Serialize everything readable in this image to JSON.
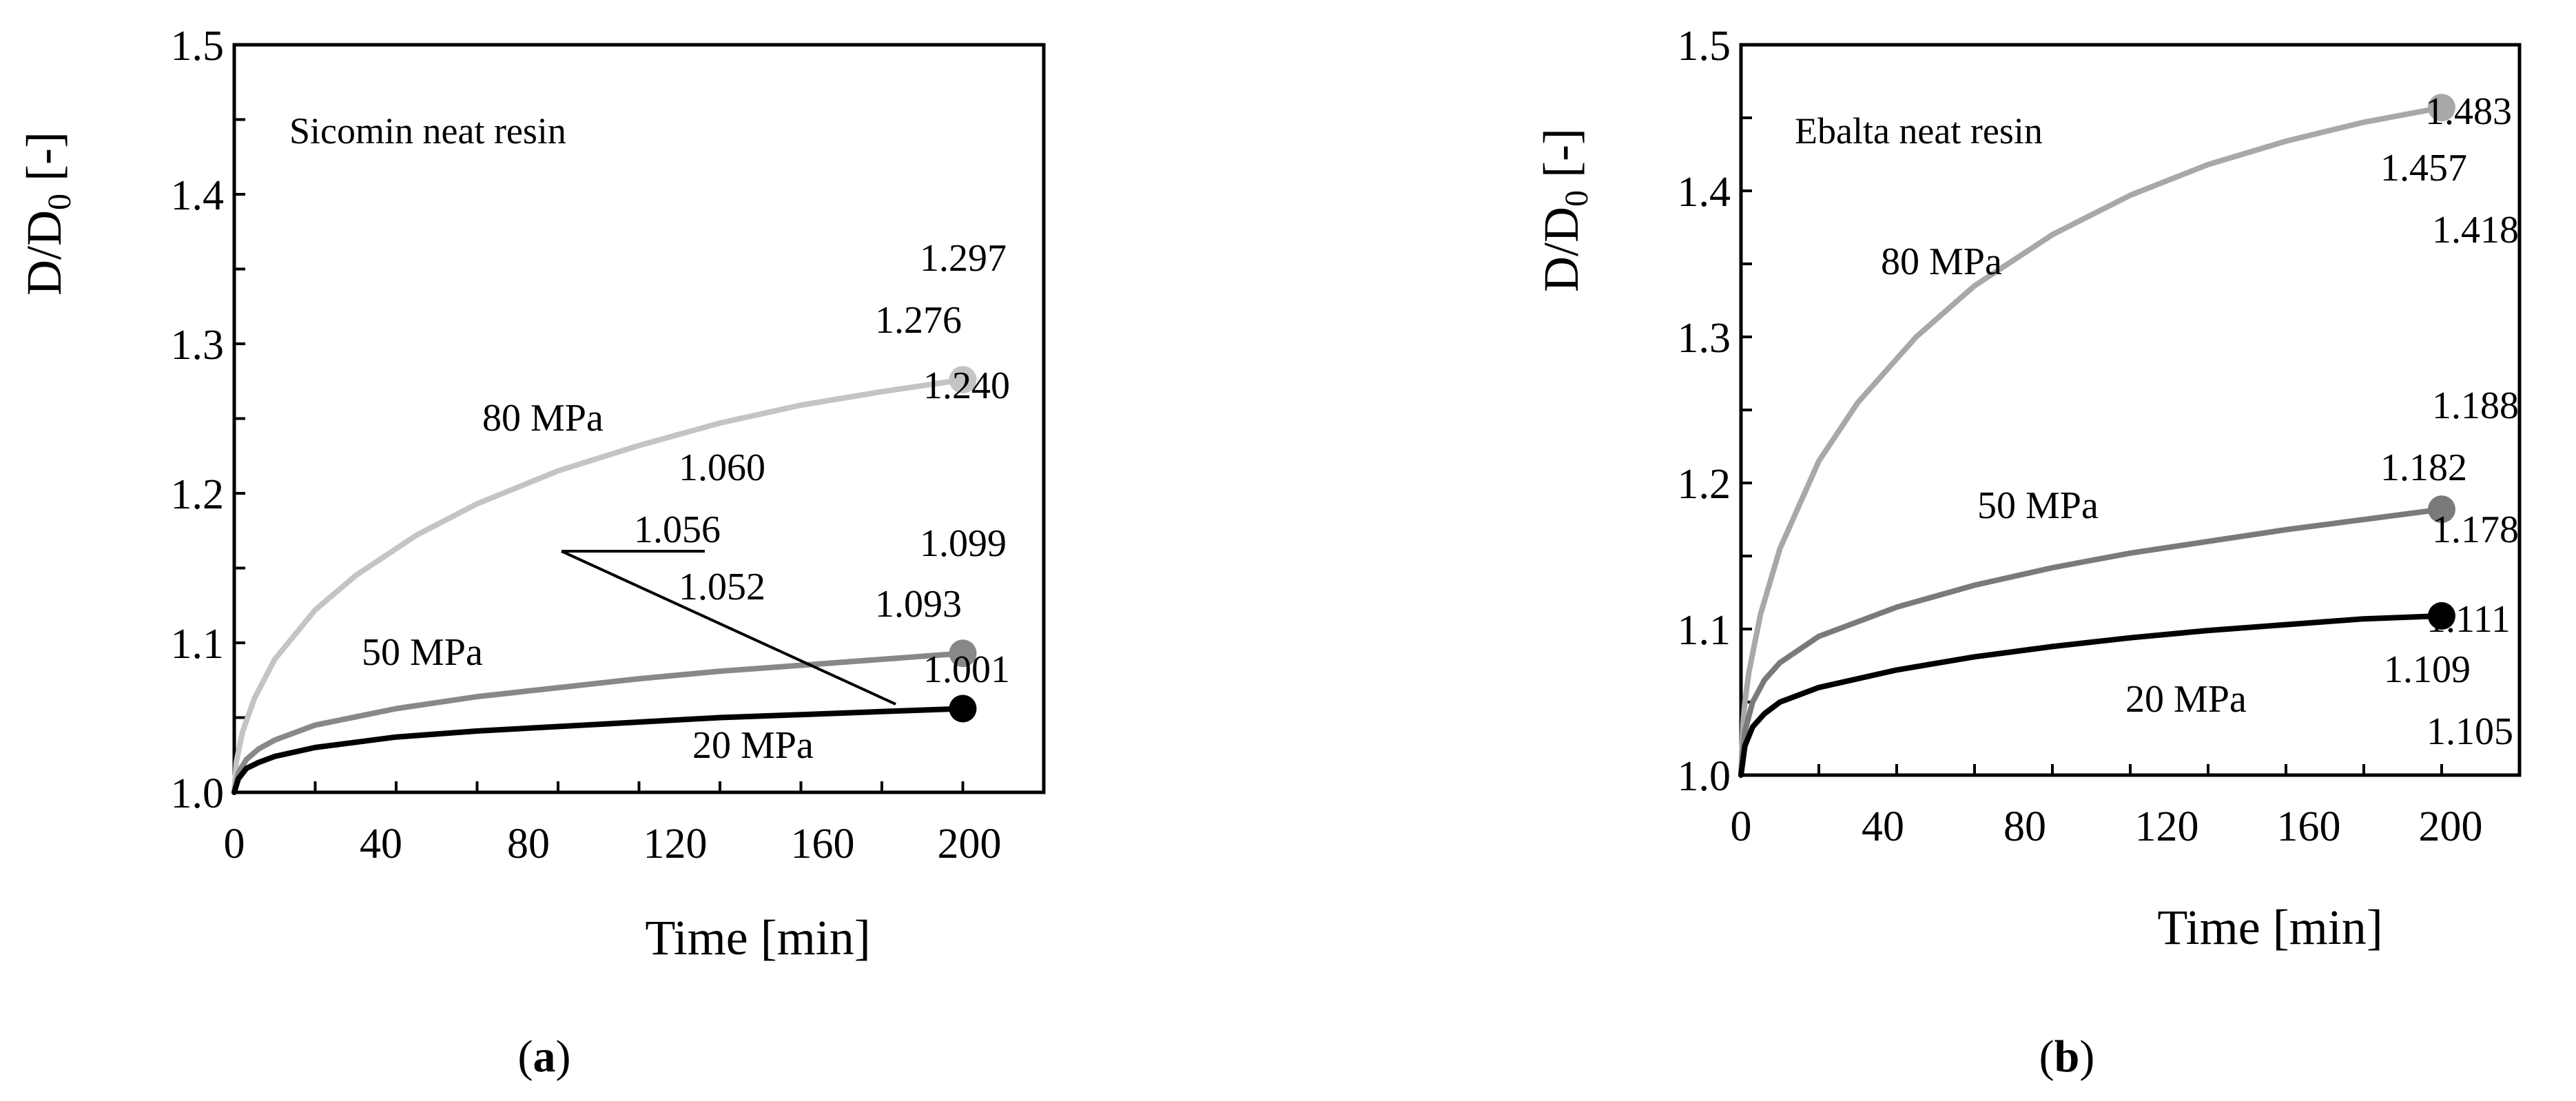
{
  "chart_data": [
    {
      "type": "line",
      "panel_label": "(a)",
      "title": "Sicomin neat resin",
      "xlabel": "Time [min]",
      "ylabel_main": "D/D",
      "ylabel_sub": "0",
      "ylabel_unit": " [-]",
      "xlim": [
        0,
        200
      ],
      "ylim": [
        1.0,
        1.5
      ],
      "xticks": [
        "0",
        "40",
        "80",
        "120",
        "160",
        "200"
      ],
      "yticks": [
        "1.0",
        "1.1",
        "1.2",
        "1.3",
        "1.4",
        "1.5"
      ],
      "grid": false,
      "series": [
        {
          "name": "80 MPa",
          "color": "#c4c4c4",
          "x": [
            0,
            0.5,
            2,
            5,
            10,
            20,
            30,
            45,
            60,
            80,
            100,
            120,
            140,
            160,
            180
          ],
          "y": [
            1.0,
            1.02,
            1.04,
            1.063,
            1.089,
            1.122,
            1.145,
            1.172,
            1.193,
            1.215,
            1.232,
            1.247,
            1.259,
            1.268,
            1.276
          ],
          "end_value": 1.276
        },
        {
          "name": "50 MPa",
          "color": "#888888",
          "x": [
            0,
            1,
            3,
            6,
            10,
            20,
            40,
            60,
            80,
            100,
            120,
            140,
            160,
            180
          ],
          "y": [
            1.0,
            1.013,
            1.022,
            1.029,
            1.035,
            1.045,
            1.056,
            1.064,
            1.07,
            1.076,
            1.081,
            1.085,
            1.089,
            1.093
          ],
          "end_value": 1.093
        },
        {
          "name": "20 MPa",
          "color": "#000000",
          "x": [
            0,
            1,
            3,
            6,
            10,
            20,
            40,
            60,
            80,
            100,
            120,
            140,
            160,
            180
          ],
          "y": [
            1.0,
            1.009,
            1.016,
            1.02,
            1.024,
            1.03,
            1.037,
            1.041,
            1.044,
            1.047,
            1.05,
            1.052,
            1.054,
            1.056
          ],
          "end_value": 1.056
        }
      ],
      "annotations": [
        "1.297",
        "1.276",
        "1.240",
        "1.060",
        "1.056",
        "1.052",
        "1.099",
        "1.093",
        "1.001"
      ]
    },
    {
      "type": "line",
      "panel_label": "(b)",
      "title": "Ebalta neat resin",
      "xlabel": "Time [min]",
      "ylabel_main": "D/D",
      "ylabel_sub": "0",
      "ylabel_unit": " [-]",
      "xlim": [
        0,
        200
      ],
      "ylim": [
        1.0,
        1.5
      ],
      "xticks": [
        "0",
        "40",
        "80",
        "120",
        "160",
        "200"
      ],
      "yticks": [
        "1.0",
        "1.1",
        "1.2",
        "1.3",
        "1.4",
        "1.5"
      ],
      "grid": false,
      "series": [
        {
          "name": "80 MPa",
          "color": "#a8a8a8",
          "x": [
            0,
            0.5,
            1,
            2,
            5,
            10,
            20,
            30,
            45,
            60,
            80,
            100,
            120,
            140,
            160,
            180
          ],
          "y": [
            1.0,
            1.035,
            1.05,
            1.07,
            1.11,
            1.155,
            1.215,
            1.255,
            1.3,
            1.335,
            1.37,
            1.397,
            1.418,
            1.434,
            1.447,
            1.457
          ],
          "end_value": 1.457
        },
        {
          "name": "50 MPa",
          "color": "#7a7a7a",
          "x": [
            0,
            1,
            3,
            6,
            10,
            20,
            40,
            60,
            80,
            100,
            120,
            140,
            160,
            180
          ],
          "y": [
            1.0,
            1.03,
            1.05,
            1.065,
            1.077,
            1.095,
            1.115,
            1.13,
            1.142,
            1.152,
            1.16,
            1.168,
            1.175,
            1.182
          ],
          "end_value": 1.182
        },
        {
          "name": "20 MPa",
          "color": "#000000",
          "x": [
            0,
            1,
            3,
            6,
            10,
            20,
            40,
            60,
            80,
            100,
            120,
            140,
            160,
            180
          ],
          "y": [
            1.0,
            1.02,
            1.033,
            1.042,
            1.05,
            1.06,
            1.072,
            1.081,
            1.088,
            1.094,
            1.099,
            1.103,
            1.107,
            1.109
          ],
          "end_value": 1.109
        }
      ],
      "annotations": [
        "1.483",
        "1.457",
        "1.418",
        "1.188",
        "1.182",
        "1.178",
        "1.111",
        "1.109",
        "1.105"
      ]
    }
  ]
}
